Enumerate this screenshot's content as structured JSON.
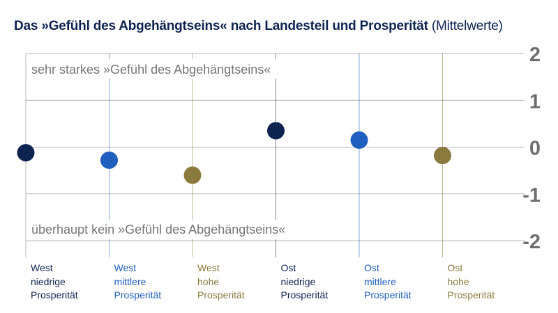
{
  "title": {
    "main": "Das »Gefühl des Abgehängtseins« nach Landesteil und Prosperität",
    "suffix": "(Mittelwerte)"
  },
  "annotations": {
    "top": "sehr starkes »Gefühl des Abgehängtseins«",
    "bottom": "überhaupt kein »Gefühl des Abgehängtseins«"
  },
  "colors": {
    "dark_navy": "#0d2451",
    "medium_blue": "#1f5fbf",
    "olive_brown": "#8b7a3e",
    "grid": "#b5b5b5",
    "tick": "#6e6e6e"
  },
  "chart_data": {
    "type": "scatter",
    "title": "Das »Gefühl des Abgehängtseins« nach Landesteil und Prosperität (Mittelwerte)",
    "ylim": [
      -2,
      2
    ],
    "ytick_labels": [
      "2",
      "1",
      "0",
      "-1",
      "-2"
    ],
    "yticks": [
      2,
      1,
      0,
      -1,
      -2
    ],
    "y_axis_position": "right",
    "grid": true,
    "categories": [
      {
        "lines": [
          "West",
          "niedrige",
          "Prosperität"
        ],
        "color": "#0d2451",
        "value": -0.12
      },
      {
        "lines": [
          "West",
          "mittlere",
          "Prosperität"
        ],
        "color": "#1f5fbf",
        "value": -0.28
      },
      {
        "lines": [
          "West",
          "hohe",
          "Prosperität"
        ],
        "color": "#8b7a3e",
        "value": -0.6
      },
      {
        "lines": [
          "Ost",
          "niedrige",
          "Prosperität"
        ],
        "color": "#0d2451",
        "value": 0.35
      },
      {
        "lines": [
          "Ost",
          "mittlere",
          "Prosperität"
        ],
        "color": "#1f5fbf",
        "value": 0.15
      },
      {
        "lines": [
          "Ost",
          "hohe",
          "Prosperität"
        ],
        "color": "#8b7a3e",
        "value": -0.18
      }
    ]
  }
}
